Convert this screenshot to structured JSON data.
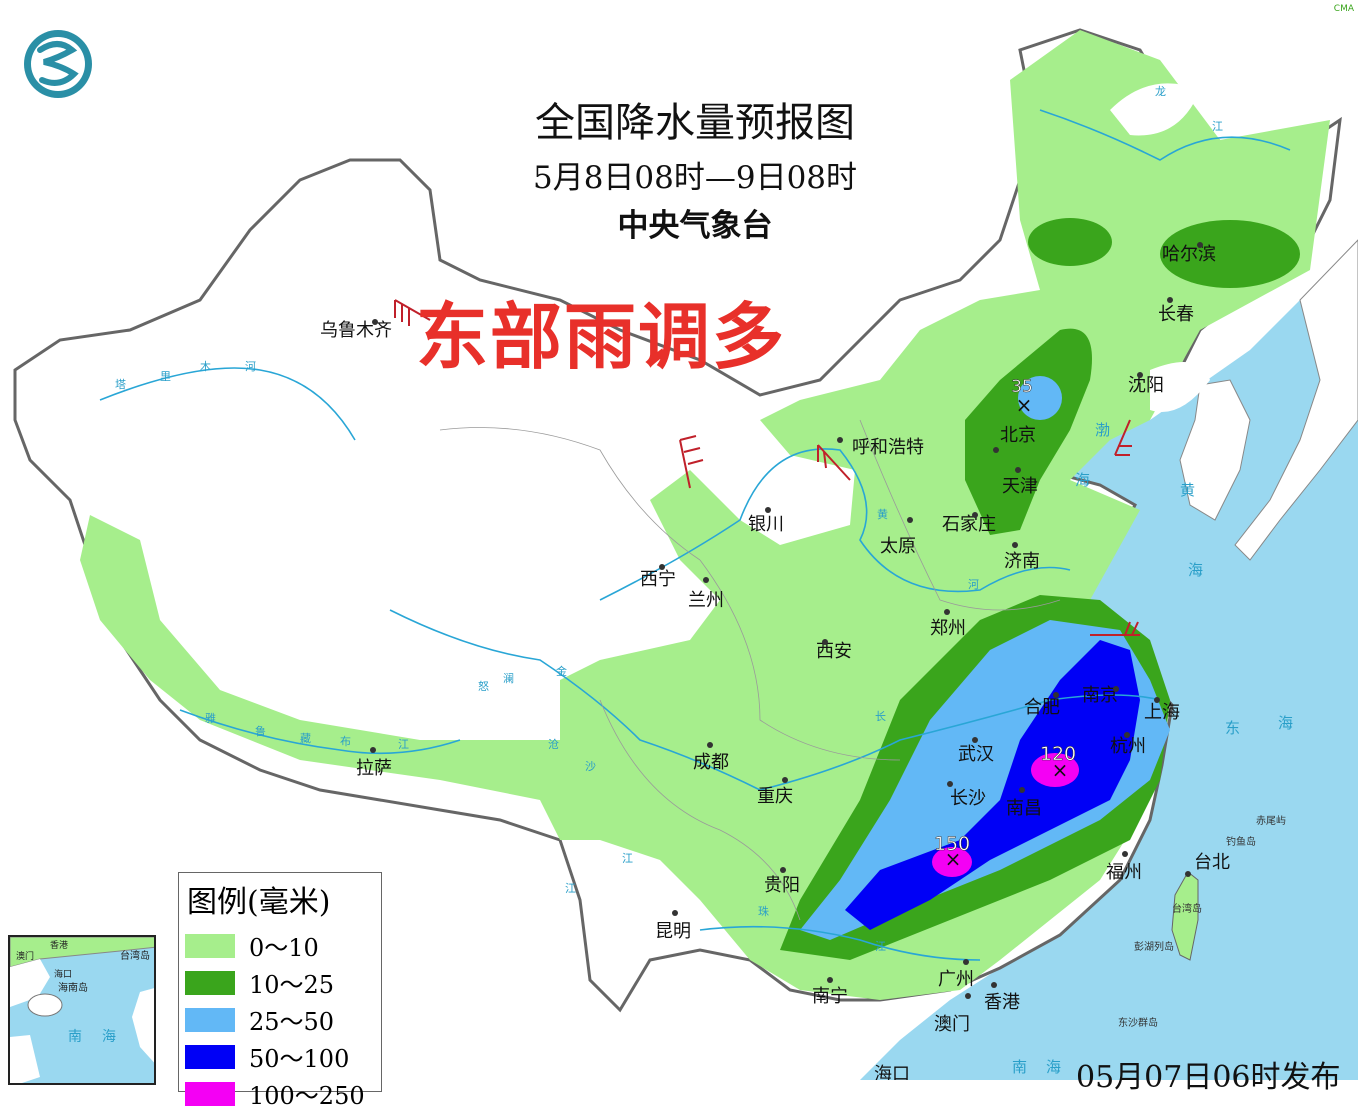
{
  "header": {
    "title": "全国降水量预报图",
    "period": "5月8日08时—9日08时",
    "agency": "中央气象台",
    "headline": "东部雨调多",
    "corner_mark": "CMA",
    "issued": "05月07日06时发布"
  },
  "colors": {
    "sea": "#9ad8f0",
    "land": "#ffffff",
    "headline": "#e8302a"
  },
  "legend": {
    "title": "图例(毫米)",
    "items": [
      {
        "label": "0～10",
        "color": "#a6ee8c"
      },
      {
        "label": "10～25",
        "color": "#3aa51c"
      },
      {
        "label": "25～50",
        "color": "#62b8f6"
      },
      {
        "label": "50～100",
        "color": "#0000f6"
      },
      {
        "label": "100～250",
        "color": "#f400f4"
      }
    ]
  },
  "maxima": [
    {
      "value": "35"
    },
    {
      "value": "120"
    },
    {
      "value": "150"
    }
  ],
  "cities": [
    "乌鲁木齐",
    "哈尔滨",
    "长春",
    "沈阳",
    "北京",
    "天津",
    "呼和浩特",
    "石家庄",
    "太原",
    "济南",
    "银川",
    "西宁",
    "兰州",
    "郑州",
    "西安",
    "南京",
    "合肥",
    "上海",
    "武汉",
    "杭州",
    "南昌",
    "长沙",
    "成都",
    "重庆",
    "拉萨",
    "贵阳",
    "昆明",
    "福州",
    "台北",
    "南宁",
    "广州",
    "香港",
    "澳门",
    "海口"
  ],
  "rivers": [
    "塔",
    "里",
    "木",
    "河",
    "黄",
    "河",
    "长",
    "江",
    "雅",
    "鲁",
    "藏",
    "布",
    "江",
    "珠",
    "江",
    "龙",
    "江",
    "金",
    "沙",
    "澜",
    "沧",
    "江",
    "怒"
  ],
  "seas": [
    "渤",
    "海",
    "黄",
    "海",
    "东",
    "海",
    "南",
    "海"
  ],
  "islands": [
    "台湾岛",
    "钓鱼岛",
    "赤尾屿",
    "彭湖列岛",
    "东沙群岛"
  ],
  "inset": {
    "labels": [
      "香港",
      "澳门",
      "台湾岛",
      "海口",
      "海南岛",
      "南",
      "海"
    ]
  }
}
